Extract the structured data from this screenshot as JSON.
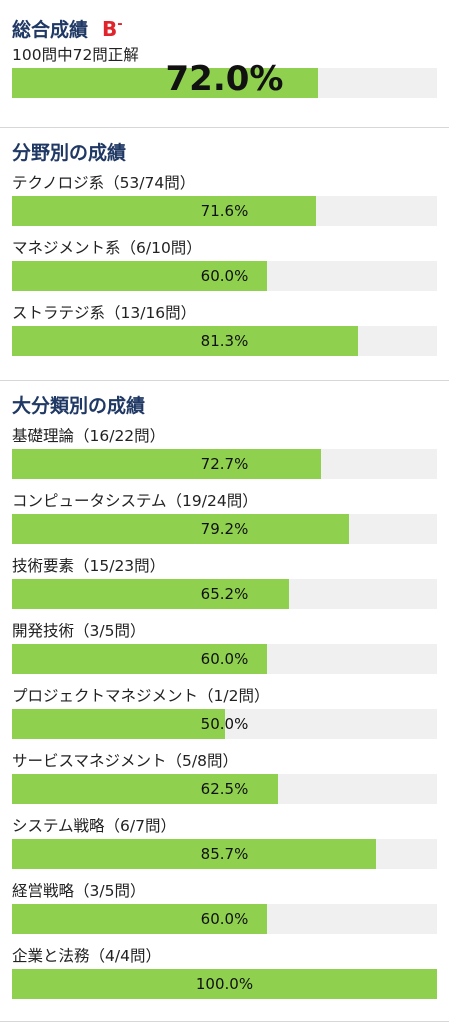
{
  "overall": {
    "title": "総合成績",
    "grade": "B",
    "grade_suffix": "-",
    "label": "100問中72問正解",
    "percent_text": "72.0%",
    "value": 72.0
  },
  "by_field": {
    "title": "分野別の成績",
    "items": [
      {
        "label": "テクノロジ系（53/74問）",
        "percent_text": "71.6%",
        "value": 71.6
      },
      {
        "label": "マネジメント系（6/10問）",
        "percent_text": "60.0%",
        "value": 60.0
      },
      {
        "label": "ストラテジ系（13/16問）",
        "percent_text": "81.3%",
        "value": 81.3
      }
    ]
  },
  "by_category": {
    "title": "大分類別の成績",
    "items": [
      {
        "label": "基礎理論（16/22問）",
        "percent_text": "72.7%",
        "value": 72.7
      },
      {
        "label": "コンピュータシステム（19/24問）",
        "percent_text": "79.2%",
        "value": 79.2
      },
      {
        "label": "技術要素（15/23問）",
        "percent_text": "65.2%",
        "value": 65.2
      },
      {
        "label": "開発技術（3/5問）",
        "percent_text": "60.0%",
        "value": 60.0
      },
      {
        "label": "プロジェクトマネジメント（1/2問）",
        "percent_text": "50.0%",
        "value": 50.0
      },
      {
        "label": "サービスマネジメント（5/8問）",
        "percent_text": "62.5%",
        "value": 62.5
      },
      {
        "label": "システム戦略（6/7問）",
        "percent_text": "85.7%",
        "value": 85.7
      },
      {
        "label": "経営戦略（3/5問）",
        "percent_text": "60.0%",
        "value": 60.0
      },
      {
        "label": "企業と法務（4/4問）",
        "percent_text": "100.0%",
        "value": 100.0
      }
    ]
  },
  "colors": {
    "title": "#1f3864",
    "grade": "#e0242b",
    "bar_fill": "#8fd14f",
    "bar_track": "#f0f0f0"
  }
}
